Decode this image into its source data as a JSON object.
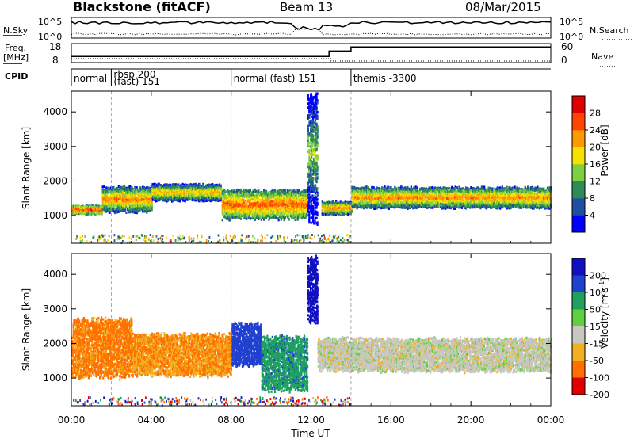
{
  "header": {
    "station": "Blackstone (fitACF)",
    "beam": "Beam 13",
    "date": "08/Mar/2015"
  },
  "noise_panel": {
    "left_label": "N.Sky",
    "left_ticks": [
      "10^5",
      "10^0"
    ],
    "right_label": "N.Search",
    "right_ticks": [
      "10^5",
      "10^0"
    ]
  },
  "freq_panel": {
    "left_label_top": "Freq.",
    "left_label_unit": "[MHz]",
    "left_ticks": [
      "18",
      "8"
    ],
    "right_label": "Nave",
    "right_ticks": [
      "60",
      "0"
    ]
  },
  "cpid_panel": {
    "label": "CPID",
    "segments": [
      {
        "start_h": 0,
        "end_h": 2,
        "text": "normal"
      },
      {
        "start_h": 2,
        "end_h": 8,
        "text": "rbsp 200",
        "text2": "(fast) 151"
      },
      {
        "start_h": 8,
        "end_h": 14,
        "text": "normal (fast) 151"
      },
      {
        "start_h": 14,
        "end_h": 24,
        "text": "themis -3300"
      }
    ]
  },
  "power_panel": {
    "ylabel": "Slant Range [km]",
    "yticks": [
      "1000",
      "2000",
      "3000",
      "4000"
    ],
    "colorbar_label": "Power [dB]",
    "colorbar_ticks": [
      "4",
      "8",
      "12",
      "16",
      "20",
      "24",
      "28"
    ],
    "colors": [
      "#0000ff",
      "#1f4fa0",
      "#2e8b57",
      "#7fd040",
      "#f5e000",
      "#ff9900",
      "#ff4400",
      "#e00000"
    ]
  },
  "velocity_panel": {
    "ylabel": "Slant Range [km]",
    "yticks": [
      "1000",
      "2000",
      "3000",
      "4000"
    ],
    "colorbar_label": "Velocity [m s",
    "colorbar_label_sup": "-1",
    "colorbar_label_end": "]",
    "colorbar_ticks": [
      "200",
      "100",
      "50",
      "15",
      "-15",
      "-50",
      "-100",
      "-200"
    ],
    "colors": [
      "#1010c0",
      "#2040d0",
      "#20a060",
      "#60d040",
      "#c8c8c0",
      "#f0b020",
      "#ff7000",
      "#e00000"
    ]
  },
  "xaxis": {
    "ticks": [
      "00:00",
      "04:00",
      "08:00",
      "12:00",
      "16:00",
      "20:00",
      "00:00"
    ],
    "label": "Time UT"
  },
  "chart_data": {
    "type": "heatmap",
    "title": "Blackstone (fitACF)",
    "subtitle": "Beam 13",
    "date": "08/Mar/2015",
    "xlabel": "Time UT",
    "ylabel": "Slant Range [km]",
    "x_range_hours": [
      0,
      24
    ],
    "y_range_km": [
      200,
      4600
    ],
    "panels": [
      {
        "name": "Power [dB]",
        "scale": [
          0,
          30
        ]
      },
      {
        "name": "Velocity [m s-1]",
        "scale": [
          -250,
          250
        ]
      }
    ],
    "cpid_transitions_h": [
      2,
      8,
      14
    ],
    "frequency_mhz": [
      {
        "start_h": 0,
        "end_h": 12.9,
        "value": 10.5
      },
      {
        "start_h": 12.9,
        "end_h": 14.0,
        "value": 14.5
      },
      {
        "start_h": 14.0,
        "end_h": 24,
        "value": 17.5
      }
    ],
    "power_bands": [
      {
        "start_h": 0.0,
        "end_h": 1.5,
        "range_km": [
          1100,
          1300
        ],
        "power_db": 26
      },
      {
        "start_h": 1.5,
        "end_h": 4.0,
        "range_km": [
          1200,
          1800
        ],
        "power_db": 22
      },
      {
        "start_h": 4.0,
        "end_h": 7.5,
        "range_km": [
          1500,
          1900
        ],
        "power_db": 20
      },
      {
        "start_h": 7.5,
        "end_h": 11.8,
        "range_km": [
          1000,
          1700
        ],
        "power_db": 24
      },
      {
        "start_h": 11.8,
        "end_h": 12.3,
        "range_km": [
          1200,
          4400
        ],
        "power_db": 14
      },
      {
        "start_h": 12.5,
        "end_h": 14.0,
        "range_km": [
          1100,
          1400
        ],
        "power_db": 22
      },
      {
        "start_h": 14.0,
        "end_h": 24.0,
        "range_km": [
          1300,
          1800
        ],
        "power_db": 22
      }
    ],
    "velocity_bands": [
      {
        "start_h": 0.0,
        "end_h": 3.0,
        "range_km": [
          1200,
          2600
        ],
        "velocity_ms": -60
      },
      {
        "start_h": 3.0,
        "end_h": 8.0,
        "range_km": [
          1200,
          2200
        ],
        "velocity_ms": -50
      },
      {
        "start_h": 8.0,
        "end_h": 9.5,
        "range_km": [
          1500,
          2500
        ],
        "velocity_ms": 100
      },
      {
        "start_h": 9.5,
        "end_h": 11.8,
        "range_km": [
          800,
          2100
        ],
        "velocity_ms": 60
      },
      {
        "start_h": 11.8,
        "end_h": 12.3,
        "range_km": [
          2800,
          4400
        ],
        "velocity_ms": 220
      },
      {
        "start_h": 12.3,
        "end_h": 24.0,
        "range_km": [
          1300,
          2100
        ],
        "velocity_ms": 0
      }
    ]
  }
}
